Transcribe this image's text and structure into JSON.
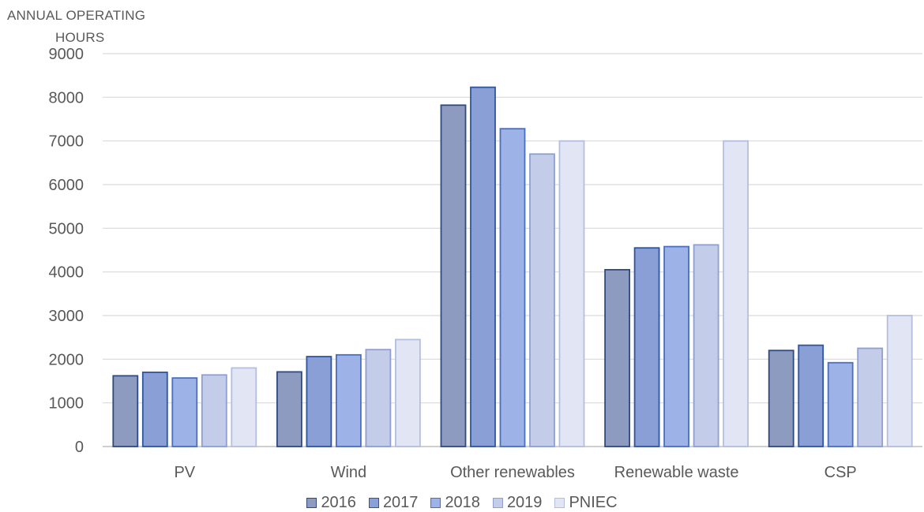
{
  "chart_data": {
    "type": "bar",
    "ylabel_lines": [
      "ANNUAL OPERATING",
      "HOURS"
    ],
    "categories": [
      "PV",
      "Wind",
      "Other renewables",
      "Renewable waste",
      "CSP"
    ],
    "ylim": [
      0,
      9000
    ],
    "yticks": [
      "0",
      "1000",
      "2000",
      "3000",
      "4000",
      "5000",
      "6000",
      "7000",
      "8000",
      "9000"
    ],
    "grid": true,
    "legend_position": "bottom",
    "series": [
      {
        "name": "2016",
        "values": [
          1620,
          1710,
          7820,
          4050,
          2200
        ],
        "fill": "#8e9bc0",
        "stroke": "#2f4a80"
      },
      {
        "name": "2017",
        "values": [
          1700,
          2060,
          8230,
          4550,
          2320
        ],
        "fill": "#8a9fd6",
        "stroke": "#2f55a0"
      },
      {
        "name": "2018",
        "values": [
          1570,
          2100,
          7280,
          4580,
          1920
        ],
        "fill": "#9db2e6",
        "stroke": "#4a6fc0"
      },
      {
        "name": "2019",
        "values": [
          1640,
          2220,
          6700,
          4620,
          2250
        ],
        "fill": "#c3cde9",
        "stroke": "#8e9fd0"
      },
      {
        "name": "PNIEC",
        "values": [
          1800,
          2450,
          7000,
          7000,
          3000
        ],
        "fill": "#e2e5f3",
        "stroke": "#b4bedf"
      }
    ]
  }
}
